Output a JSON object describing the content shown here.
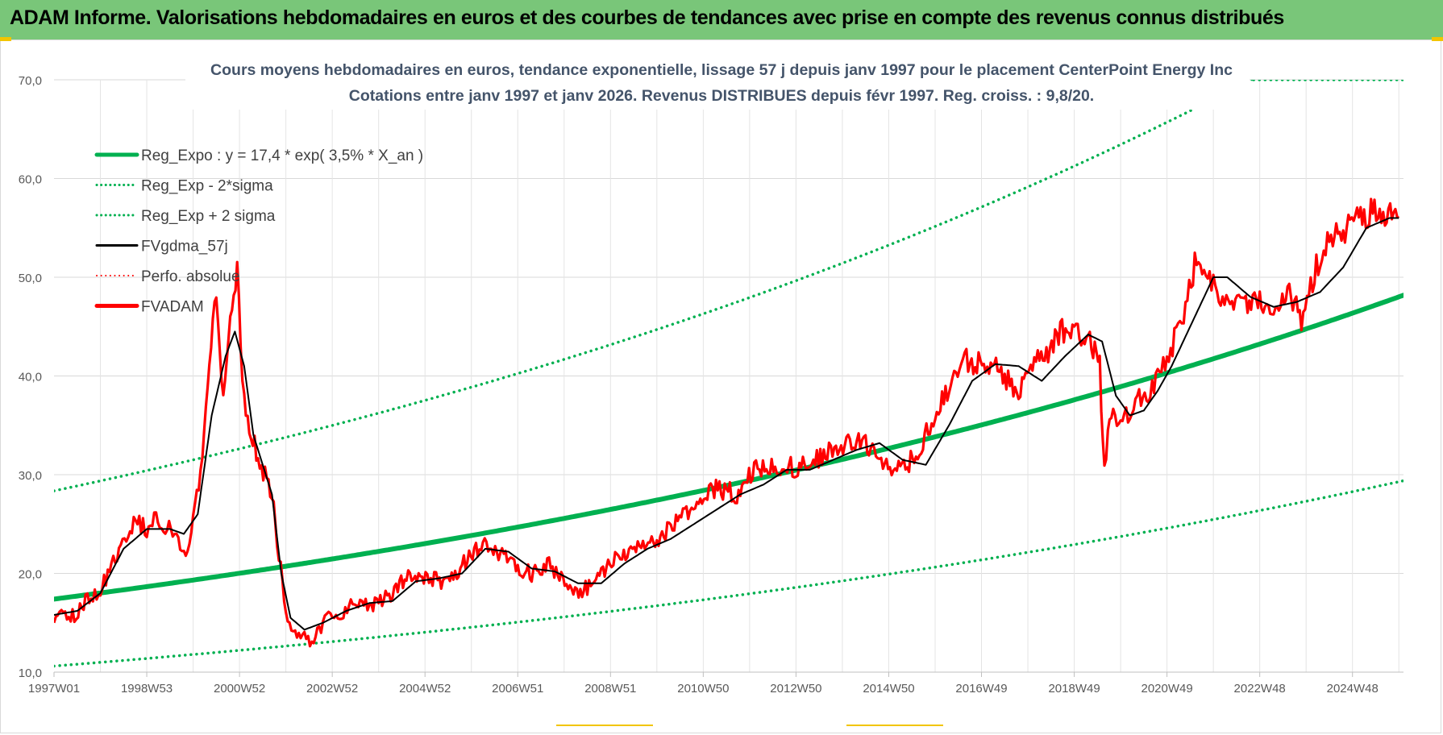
{
  "banner": {
    "title": "ADAM Informe. Valorisations hebdomadaires en euros et des courbes de tendances avec prise en compte des revenus connus distribués"
  },
  "colors": {
    "banner_bg": "#79c679",
    "trend": "#00b050",
    "smooth": "#000000",
    "price": "#ff0000",
    "perf": "#ff0000",
    "grid": "#d9d9d9",
    "title_text": "#44546a"
  },
  "chart_data": {
    "type": "line",
    "title_line1": "Cours moyens hebdomadaires en euros, tendance exponentielle, lissage 57 j depuis janv 1997 pour le placement CenterPoint Energy Inc",
    "title_line2": "Cotations entre janv 1997 et janv 2026. Revenus DISTRIBUES depuis févr 1997. Reg.  croiss. : 9,8/20.",
    "xlabel": "",
    "ylabel": "",
    "xlim": [
      1997.0,
      2026.1
    ],
    "ylim": [
      10,
      70
    ],
    "y_ticks": [
      10,
      20,
      30,
      40,
      50,
      60,
      70
    ],
    "y_tick_labels": [
      "10,0",
      "20,0",
      "30,0",
      "40,0",
      "50,0",
      "60,0",
      "70,0"
    ],
    "x_ticks": [
      1997.0,
      1999.0,
      2001.0,
      2003.0,
      2005.0,
      2007.0,
      2009.0,
      2011.0,
      2013.0,
      2015.0,
      2017.0,
      2019.0,
      2021.0,
      2023.0,
      2025.0
    ],
    "x_tick_labels": [
      "1997W01",
      "1998W53",
      "2000W52",
      "2002W52",
      "2004W52",
      "2006W51",
      "2008W51",
      "2010W50",
      "2012W50",
      "2014W50",
      "2016W49",
      "2018W49",
      "2020W49",
      "2022W48",
      "2024W48"
    ],
    "grid": true,
    "legend_position": "top-left",
    "legend": [
      {
        "name": "Reg_Expo : y = 17,4 * exp( 3,5% *  X_an )",
        "style": "solid-thick",
        "color": "#00b050"
      },
      {
        "name": "Reg_Exp - 2*sigma",
        "style": "dotted",
        "color": "#00b050"
      },
      {
        "name": "Reg_Exp + 2 sigma",
        "style": "dotted",
        "color": "#00b050"
      },
      {
        "name": "FVgdma_57j",
        "style": "solid-thin",
        "color": "#000000"
      },
      {
        "name": "Perfo. absolue",
        "style": "dotted",
        "color": "#ff0000"
      },
      {
        "name": "FVADAM",
        "style": "solid-thick",
        "color": "#ff0000"
      }
    ],
    "regression": {
      "a": 17.4,
      "rate": 0.035,
      "x0": 1997.0,
      "lower_factor": 0.61,
      "upper_factor": 1.63
    },
    "series": [
      {
        "name": "FVADAM",
        "x": [
          1997.0,
          1997.2,
          1997.4,
          1997.6,
          1997.8,
          1998.0,
          1998.2,
          1998.4,
          1998.6,
          1998.8,
          1999.0,
          1999.2,
          1999.4,
          1999.6,
          1999.8,
          2000.0,
          2000.2,
          2000.35,
          2000.5,
          2000.65,
          2000.8,
          2000.95,
          2001.1,
          2001.25,
          2001.4,
          2001.55,
          2001.7,
          2001.85,
          2002.0,
          2002.2,
          2002.4,
          2002.6,
          2002.8,
          2003.0,
          2003.2,
          2003.4,
          2003.6,
          2003.8,
          2004.0,
          2004.3,
          2004.6,
          2004.9,
          2005.2,
          2005.5,
          2005.8,
          2006.1,
          2006.4,
          2006.7,
          2007.0,
          2007.3,
          2007.6,
          2007.9,
          2008.2,
          2008.5,
          2008.8,
          2009.1,
          2009.4,
          2009.7,
          2010.0,
          2010.3,
          2010.6,
          2010.9,
          2011.2,
          2011.5,
          2011.8,
          2012.1,
          2012.4,
          2012.7,
          2013.0,
          2013.3,
          2013.6,
          2013.9,
          2014.2,
          2014.5,
          2014.8,
          2015.1,
          2015.4,
          2015.7,
          2016.0,
          2016.3,
          2016.6,
          2016.9,
          2017.2,
          2017.5,
          2017.8,
          2018.1,
          2018.4,
          2018.7,
          2019.0,
          2019.3,
          2019.55,
          2019.65,
          2019.8,
          2020.0,
          2020.2,
          2020.4,
          2020.6,
          2020.8,
          2021.0,
          2021.2,
          2021.4,
          2021.6,
          2021.8,
          2022.0,
          2022.2,
          2022.4,
          2022.7,
          2023.0,
          2023.3,
          2023.6,
          2023.9,
          2024.1,
          2024.3,
          2024.5,
          2024.8,
          2025.1,
          2025.4,
          2025.7,
          2026.0
        ],
        "values": [
          15.5,
          16.2,
          15.6,
          16.8,
          17.5,
          18.5,
          20.0,
          22.5,
          24.5,
          25.0,
          24.6,
          25.5,
          25.0,
          24.0,
          22.0,
          25.0,
          32.0,
          42.0,
          48.0,
          38.0,
          45.0,
          50.5,
          37.0,
          34.0,
          32.0,
          30.0,
          28.0,
          22.0,
          16.0,
          14.0,
          13.5,
          13.0,
          15.0,
          15.8,
          16.0,
          16.8,
          17.2,
          17.0,
          17.0,
          18.0,
          19.5,
          19.8,
          19.5,
          18.8,
          21.0,
          22.5,
          23.0,
          21.5,
          20.5,
          20.0,
          21.0,
          20.0,
          18.0,
          18.5,
          20.0,
          21.5,
          22.5,
          23.0,
          23.5,
          24.8,
          26.0,
          27.0,
          28.5,
          28.5,
          27.5,
          31.0,
          30.8,
          31.0,
          30.5,
          31.0,
          32.0,
          33.0,
          33.5,
          33.0,
          31.5,
          30.0,
          31.0,
          33.0,
          36.0,
          38.5,
          41.5,
          41.2,
          41.5,
          40.0,
          38.5,
          41.0,
          42.0,
          44.5,
          44.8,
          44.0,
          41.0,
          31.0,
          36.0,
          35.5,
          36.0,
          37.5,
          38.0,
          40.0,
          41.5,
          44.0,
          46.5,
          51.0,
          50.0,
          49.0,
          48.0,
          47.5,
          47.0,
          47.5,
          47.5,
          49.0,
          46.0,
          49.0,
          52.0,
          54.0,
          55.0,
          55.5,
          56.5,
          56.0,
          56.0
        ]
      },
      {
        "name": "FVgdma_57j",
        "x": [
          1997.0,
          1997.5,
          1998.0,
          1998.5,
          1999.0,
          1999.5,
          1999.8,
          2000.1,
          2000.4,
          2000.7,
          2000.9,
          2001.1,
          2001.3,
          2001.5,
          2001.7,
          2001.9,
          2002.1,
          2002.4,
          2002.8,
          2003.3,
          2003.8,
          2004.3,
          2004.8,
          2005.3,
          2005.8,
          2006.3,
          2006.8,
          2007.3,
          2007.8,
          2008.3,
          2008.8,
          2009.3,
          2009.8,
          2010.3,
          2010.8,
          2011.3,
          2011.8,
          2012.3,
          2012.8,
          2013.3,
          2013.8,
          2014.3,
          2014.8,
          2015.3,
          2015.8,
          2016.3,
          2016.8,
          2017.3,
          2017.8,
          2018.3,
          2018.8,
          2019.3,
          2019.6,
          2019.9,
          2020.2,
          2020.5,
          2020.8,
          2021.1,
          2021.4,
          2021.7,
          2022.0,
          2022.3,
          2022.8,
          2023.3,
          2023.8,
          2024.3,
          2024.8,
          2025.3,
          2025.8,
          2026.0
        ],
        "values": [
          15.8,
          16.2,
          18.0,
          22.5,
          24.5,
          24.5,
          24.0,
          26.0,
          36.0,
          42.0,
          44.5,
          41.0,
          34.0,
          31.0,
          28.0,
          20.0,
          15.5,
          14.3,
          15.0,
          16.2,
          17.0,
          17.2,
          19.2,
          19.5,
          20.0,
          22.5,
          22.2,
          20.5,
          20.2,
          19.0,
          19.0,
          21.0,
          22.5,
          23.5,
          25.0,
          26.5,
          28.0,
          29.0,
          30.5,
          30.5,
          31.5,
          32.5,
          33.2,
          31.5,
          31.0,
          35.0,
          39.5,
          41.2,
          41.0,
          39.5,
          42.0,
          44.2,
          43.5,
          38.0,
          36.0,
          36.5,
          38.5,
          41.0,
          44.0,
          47.0,
          50.0,
          50.0,
          48.0,
          47.0,
          47.5,
          48.5,
          51.0,
          55.0,
          56.0,
          56.0
        ]
      }
    ]
  }
}
